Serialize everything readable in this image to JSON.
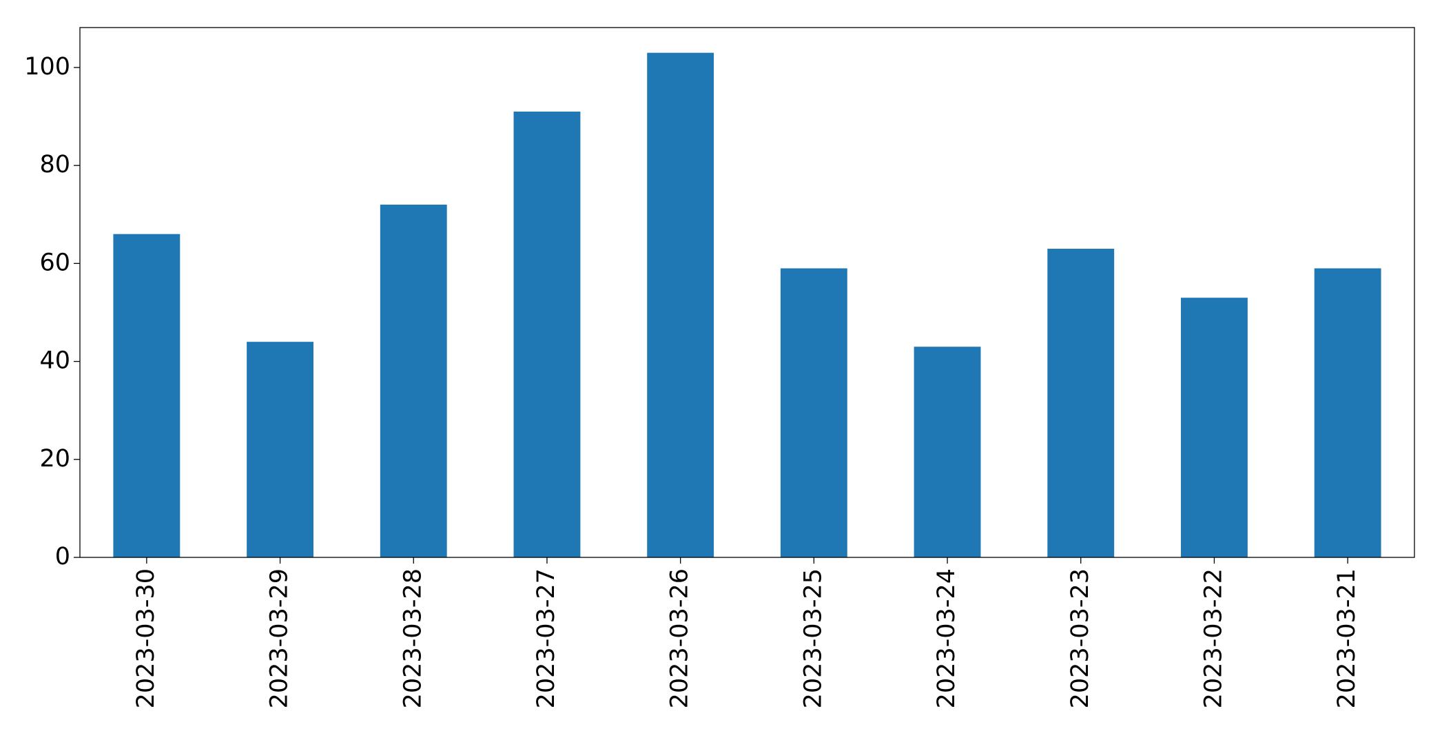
{
  "chart_data": {
    "type": "bar",
    "categories": [
      "2023-03-30",
      "2023-03-29",
      "2023-03-28",
      "2023-03-27",
      "2023-03-26",
      "2023-03-25",
      "2023-03-24",
      "2023-03-23",
      "2023-03-22",
      "2023-03-21"
    ],
    "values": [
      66,
      44,
      72,
      91,
      103,
      59,
      43,
      63,
      53,
      59
    ],
    "color": "#1f77b4",
    "ylim": [
      0,
      108.15
    ],
    "yticks": [
      0,
      20,
      40,
      60,
      80,
      100
    ],
    "grid": false
  }
}
